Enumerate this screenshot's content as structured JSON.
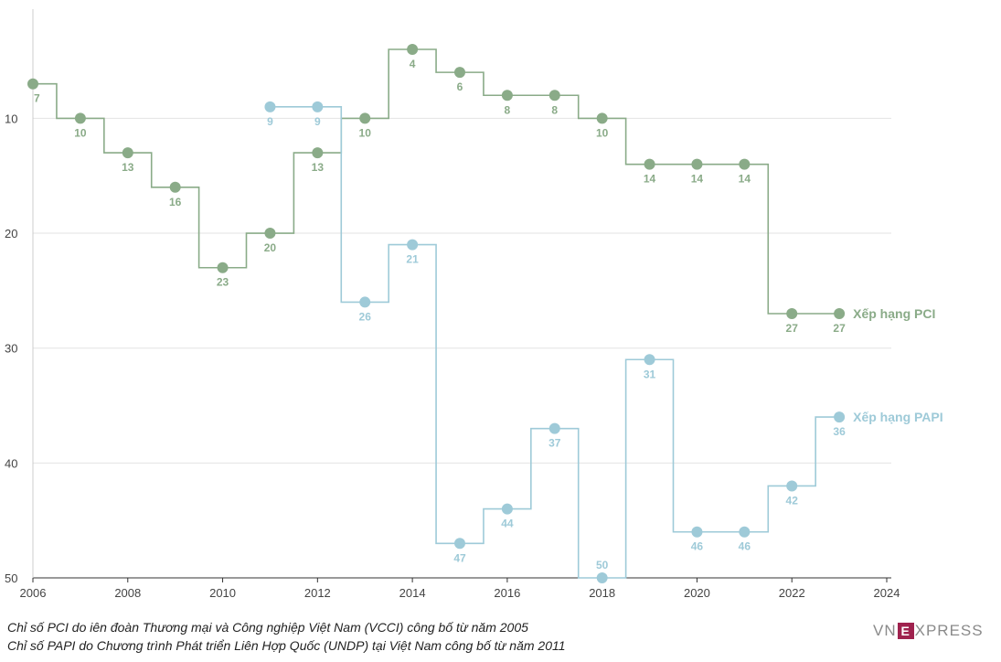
{
  "chart_data": {
    "type": "line",
    "step": true,
    "y_inverted": true,
    "xlim": [
      2006,
      2024
    ],
    "ylim": [
      1,
      50
    ],
    "x_ticks": [
      2006,
      2008,
      2010,
      2012,
      2014,
      2016,
      2018,
      2020,
      2022,
      2024
    ],
    "y_ticks": [
      10,
      20,
      30,
      40,
      50
    ],
    "grid": "horizontal",
    "series": [
      {
        "name": "Xếp hạng PCI",
        "color": "#8aab88",
        "x": [
          2006,
          2007,
          2008,
          2009,
          2010,
          2011,
          2012,
          2013,
          2014,
          2015,
          2016,
          2017,
          2018,
          2019,
          2020,
          2021,
          2022,
          2023
        ],
        "values": [
          7,
          10,
          13,
          16,
          23,
          20,
          13,
          10,
          4,
          6,
          8,
          8,
          10,
          14,
          14,
          14,
          27,
          27
        ]
      },
      {
        "name": "Xếp hạng PAPI",
        "color": "#9ecad8",
        "x": [
          2011,
          2012,
          2013,
          2014,
          2015,
          2016,
          2017,
          2018,
          2019,
          2020,
          2021,
          2022,
          2023
        ],
        "values": [
          9,
          9,
          26,
          21,
          47,
          44,
          37,
          50,
          31,
          46,
          46,
          42,
          36
        ]
      }
    ]
  },
  "notes": [
    "Chỉ số PCI do iên đoàn Thương mại và Công nghiệp Việt Nam (VCCI) công bố từ năm 2005",
    "Chỉ số PAPI do Chương trình Phát triển Liên Hợp Quốc (UNDP) tại Việt Nam công bố từ năm 2011"
  ],
  "logo": {
    "left": "VN",
    "mark": "E",
    "right": "XPRESS"
  }
}
